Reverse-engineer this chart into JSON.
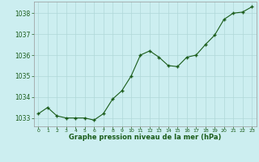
{
  "x": [
    0,
    1,
    2,
    3,
    4,
    5,
    6,
    7,
    8,
    9,
    10,
    11,
    12,
    13,
    14,
    15,
    16,
    17,
    18,
    19,
    20,
    21,
    22,
    23
  ],
  "y": [
    1033.2,
    1033.5,
    1033.1,
    1033.0,
    1033.0,
    1033.0,
    1032.9,
    1033.2,
    1033.9,
    1034.3,
    1035.0,
    1036.0,
    1036.2,
    1035.9,
    1035.5,
    1035.45,
    1035.9,
    1036.0,
    1036.5,
    1036.95,
    1037.7,
    1038.0,
    1038.05,
    1038.3
  ],
  "line_color": "#1a5c1a",
  "marker_color": "#1a5c1a",
  "bg_color": "#cceef0",
  "grid_color": "#b0d8d8",
  "text_color": "#1a5c1a",
  "xlabel": "Graphe pression niveau de la mer (hPa)",
  "ylim": [
    1032.6,
    1038.55
  ],
  "yticks": [
    1033,
    1034,
    1035,
    1036,
    1037,
    1038
  ],
  "xticks": [
    0,
    1,
    2,
    3,
    4,
    5,
    6,
    7,
    8,
    9,
    10,
    11,
    12,
    13,
    14,
    15,
    16,
    17,
    18,
    19,
    20,
    21,
    22,
    23
  ]
}
